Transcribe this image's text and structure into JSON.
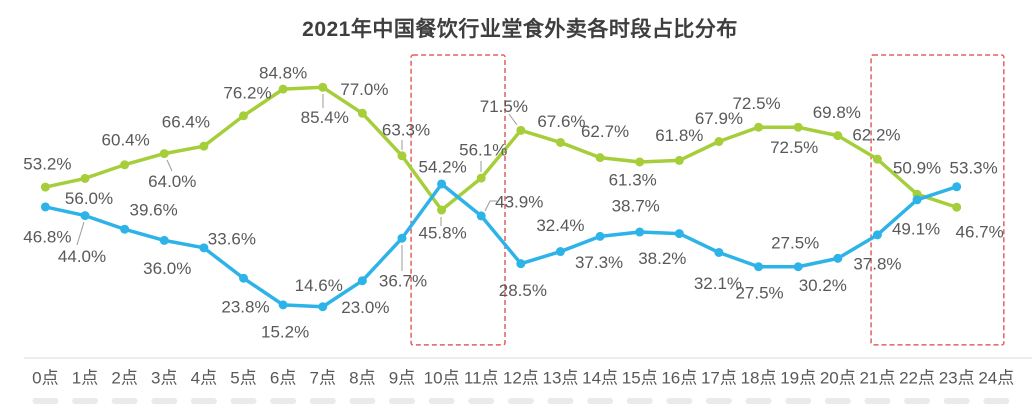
{
  "chart_data": {
    "type": "line",
    "title": "2021年中国餐饮行业堂食外卖各时段占比分布",
    "xlabel": "",
    "ylabel": "",
    "unit": "%",
    "ylim": [
      0,
      100
    ],
    "grid": false,
    "legend_position": "none",
    "x_tick_labels": [
      "0点",
      "1点",
      "2点",
      "3点",
      "4点",
      "5点",
      "6点",
      "7点",
      "8点",
      "9点",
      "10点",
      "11点",
      "12点",
      "13点",
      "14点",
      "15点",
      "16点",
      "17点",
      "18点",
      "19点",
      "20点",
      "21点",
      "22点",
      "23点",
      "24点"
    ],
    "series": [
      {
        "name": "green-series",
        "color": "#a6ce3a",
        "values": [
          53.2,
          56.0,
          60.4,
          64.0,
          66.4,
          76.2,
          84.8,
          85.4,
          77.0,
          63.3,
          45.8,
          56.1,
          71.5,
          67.6,
          62.7,
          61.3,
          61.8,
          67.9,
          72.5,
          72.5,
          69.8,
          62.2,
          50.9,
          46.7
        ]
      },
      {
        "name": "blue-series",
        "color": "#2eb3e8",
        "values": [
          46.8,
          44.0,
          39.6,
          36.0,
          33.6,
          23.8,
          15.2,
          14.6,
          23.0,
          36.7,
          54.2,
          43.9,
          28.5,
          32.4,
          37.3,
          38.7,
          38.2,
          32.1,
          27.5,
          27.5,
          30.2,
          37.8,
          49.1,
          53.3
        ]
      }
    ],
    "annotations": {
      "highlight_boxes": [
        {
          "hour_start": 9.23,
          "hour_end": 11.6,
          "value_top": 95.8,
          "value_bottom": 2.3
        },
        {
          "hour_start": 20.84,
          "hour_end": 24.19,
          "value_top": 95.8,
          "value_bottom": 2.3
        }
      ],
      "highlight_color": "#e45f5f"
    },
    "colors": {
      "title": "#3e3e3e",
      "data_label": "#58595b",
      "axis_line": "#d9d9d9",
      "axis_label": "#595959",
      "leader_line": "#9b9b9b"
    }
  }
}
